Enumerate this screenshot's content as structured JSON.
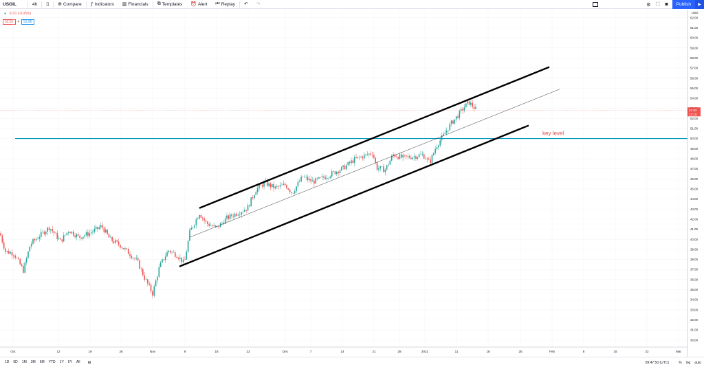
{
  "toolbar": {
    "symbol": "USOIL",
    "interval": "4h",
    "compare": "Compare",
    "indicators": "Indicators",
    "financials": "Financials",
    "templates": "Templates",
    "alert": "Alert",
    "replay": "Replay",
    "publish": "Publish"
  },
  "legend": {
    "change": "-0.01 (-0.05%)",
    "sell_price": "52.83",
    "spread": "4",
    "buy_price": "52.86"
  },
  "chart_data": {
    "type": "candlestick",
    "currency": "USD",
    "y_ticks": [
      "62.00",
      "61.00",
      "60.00",
      "59.00",
      "58.00",
      "57.00",
      "56.00",
      "55.00",
      "54.00",
      "53.00",
      "52.00",
      "51.00",
      "50.00",
      "49.00",
      "48.00",
      "47.00",
      "46.00",
      "45.00",
      "44.00",
      "43.00",
      "42.00",
      "41.00",
      "40.00",
      "39.00",
      "38.00",
      "37.00",
      "36.00",
      "35.00",
      "34.00",
      "33.00",
      "32.00",
      "31.00",
      "30.00"
    ],
    "ylim": [
      29.3,
      62.8
    ],
    "x_ticks": [
      "Oct",
      "12",
      "19",
      "26",
      "Nov",
      "9",
      "16",
      "23",
      "Dec",
      "7",
      "14",
      "21",
      "28",
      "2021",
      "11",
      "18",
      "25",
      "Feb",
      "8",
      "15",
      "22",
      "Mar"
    ],
    "current_price": "52.82",
    "current_price_countdown": "12:10",
    "key_level_value": 50.0,
    "key_level_label": "key level",
    "colors": {
      "up": "#26a69a",
      "down": "#ef5350",
      "key_level": "#0097c1",
      "channel": "#000000",
      "label": "#e04a4a"
    }
  },
  "bottom": {
    "ranges": [
      "1D",
      "5D",
      "1M",
      "3M",
      "6M",
      "YTD",
      "1Y",
      "5Y",
      "All"
    ],
    "time": "09:47:50 (UTC)",
    "percent": "%",
    "log": "log",
    "auto": "auto"
  }
}
